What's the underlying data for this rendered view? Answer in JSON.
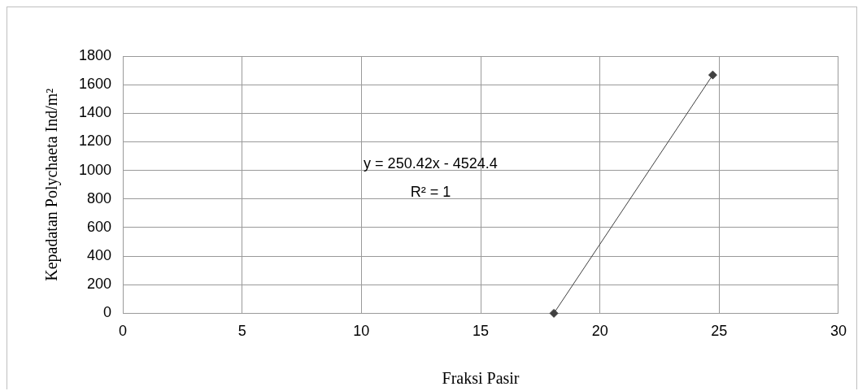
{
  "chart_data": {
    "type": "line",
    "line_style": "solid",
    "xlabel": "Fraksi Pasir",
    "ylabel": "Kepadatan Polychaeta Ind/m²",
    "xlim": [
      0,
      30
    ],
    "xticks": [
      0,
      5,
      10,
      15,
      20,
      25,
      30
    ],
    "ylim": [
      0,
      1800
    ],
    "yticks": [
      0,
      200,
      400,
      600,
      800,
      1000,
      1200,
      1400,
      1600,
      1800
    ],
    "grid": true,
    "legend": false,
    "marker": "diamond",
    "series": [
      {
        "color": "#404040",
        "x": [
          18.07,
          24.73
        ],
        "values": [
          0,
          1668
        ]
      }
    ],
    "annotations": [
      "y = 250.42x - 4524.4",
      "R² = 1"
    ]
  }
}
